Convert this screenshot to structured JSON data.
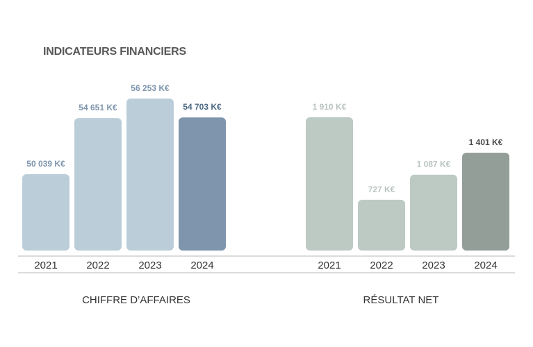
{
  "page": {
    "title": "INDICATEURS FINANCIERS"
  },
  "chart_data": [
    {
      "type": "bar",
      "title": "",
      "xlabel": "CHIFFRE D’AFFAIRES",
      "ylabel": "",
      "categories": [
        "2021",
        "2022",
        "2023",
        "2024"
      ],
      "values": [
        50039,
        54651,
        56253,
        54703
      ],
      "value_labels": [
        "50 039 K€",
        "54 651 K€",
        "56 253 K€",
        "54 703 K€"
      ],
      "unit": "K€",
      "grid": false,
      "colors": [
        "#bccdda",
        "#bccdda",
        "#bccdda",
        "#7f95ad"
      ],
      "label_colors": [
        "#7f95ad",
        "#7f95ad",
        "#7f95ad",
        "#4e6a85"
      ]
    },
    {
      "type": "bar",
      "title": "",
      "xlabel": "RÉSULTAT NET",
      "ylabel": "",
      "categories": [
        "2021",
        "2022",
        "2023",
        "2024"
      ],
      "values": [
        1910,
        727,
        1087,
        1401
      ],
      "value_labels": [
        "1 910 K€",
        "727 K€",
        "1 087 K€",
        "1 401 K€"
      ],
      "unit": "K€",
      "grid": false,
      "colors": [
        "#bdcac4",
        "#bdcac4",
        "#bdcac4",
        "#939e99"
      ],
      "label_colors": [
        "#b9c4bf",
        "#b9c4bf",
        "#b9c4bf",
        "#4a4a4a"
      ]
    }
  ]
}
